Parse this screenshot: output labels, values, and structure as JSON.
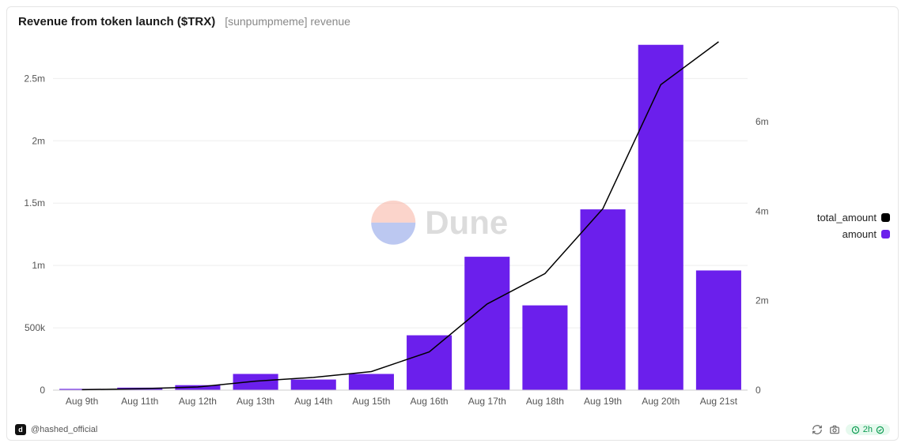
{
  "header": {
    "title": "Revenue from token launch ($TRX)",
    "subtitle": "[sunpumpmeme] revenue"
  },
  "watermark": {
    "text": "Dune"
  },
  "legend": {
    "items": [
      {
        "label": "total_amount",
        "color": "#000000"
      },
      {
        "label": "amount",
        "color": "#6b1fec"
      }
    ]
  },
  "chart": {
    "type": "bar+line",
    "background_color": "#ffffff",
    "grid_color": "#eeeeee",
    "bar_color": "#6b1fec",
    "line_color": "#000000",
    "line_width": 1.5,
    "bar_width_ratio": 0.78,
    "categories": [
      "Aug 9th",
      "Aug 11th",
      "Aug 12th",
      "Aug 13th",
      "Aug 14th",
      "Aug 15th",
      "Aug 16th",
      "Aug 17th",
      "Aug 18th",
      "Aug 19th",
      "Aug 20th",
      "Aug 21st"
    ],
    "bars_amount": [
      10000,
      20000,
      40000,
      130000,
      85000,
      130000,
      440000,
      1070000,
      680000,
      1450000,
      2770000,
      960000
    ],
    "line_total_amount": [
      10000,
      30000,
      70000,
      200000,
      285000,
      415000,
      855000,
      1925000,
      2605000,
      4055000,
      6825000,
      7785000
    ],
    "y_left": {
      "min": 0,
      "max": 2800000,
      "ticks": [
        0,
        500000,
        1000000,
        1500000,
        2000000,
        2500000
      ],
      "tick_labels": [
        "0",
        "500k",
        "1m",
        "1.5m",
        "2m",
        "2.5m"
      ]
    },
    "y_right": {
      "min": 0,
      "max": 7800000,
      "ticks": [
        0,
        2000000,
        4000000,
        6000000
      ],
      "tick_labels": [
        "0",
        "2m",
        "4m",
        "6m"
      ]
    },
    "label_fontsize": 12,
    "label_color": "#555555"
  },
  "footer": {
    "author": "@hashed_official",
    "time_badge": "2h"
  }
}
